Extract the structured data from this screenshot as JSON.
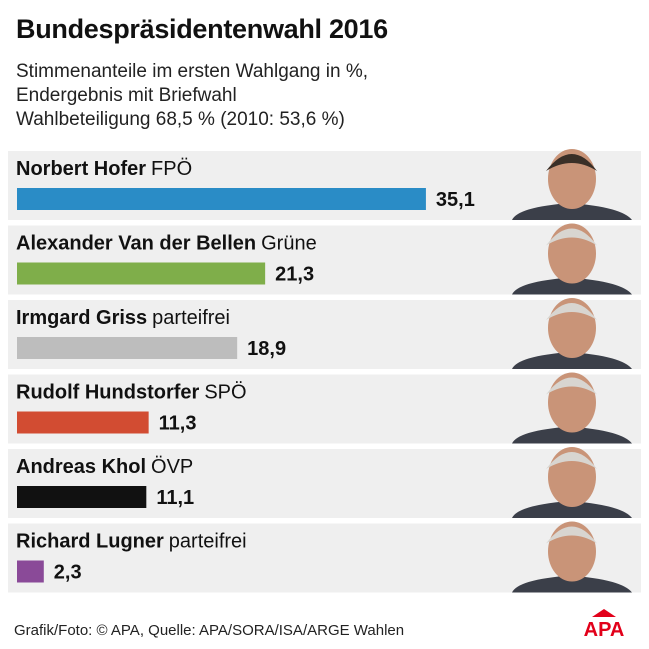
{
  "header": {
    "title": "Bundespräsidentenwahl 2016",
    "subtitle_lines": [
      "Stimmenanteile im ersten Wahlgang in %,",
      "Endergebnis mit Briefwahl",
      "Wahlbeteiligung 68,5 % (2010: 53,6 %)"
    ]
  },
  "chart_data": {
    "type": "bar",
    "orientation": "horizontal",
    "title": "Bundespräsidentenwahl 2016",
    "unit": "%",
    "xlim": [
      0,
      40
    ],
    "categories": [
      "Norbert Hofer",
      "Alexander Van der Bellen",
      "Irmgard Griss",
      "Rudolf Hundstorfer",
      "Andreas Khol",
      "Richard Lugner"
    ],
    "parties": [
      "FPÖ",
      "Grüne",
      "parteifrei",
      "SPÖ",
      "ÖVP",
      "parteifrei"
    ],
    "values": [
      35.1,
      21.3,
      18.9,
      11.3,
      11.1,
      2.3
    ],
    "value_labels": [
      "35,1",
      "21,3",
      "18,9",
      "11,3",
      "11,1",
      "2,3"
    ],
    "colors": [
      "#2a8cc6",
      "#7fae4a",
      "#bdbdbd",
      "#d24c32",
      "#111111",
      "#8a4a98"
    ],
    "row_background": "#efefef"
  },
  "footer": {
    "credit": "Grafik/Foto: © APA, Quelle: APA/SORA/ISA/ARGE Wahlen",
    "logo_text": "APA",
    "logo_color": "#e2001a"
  }
}
